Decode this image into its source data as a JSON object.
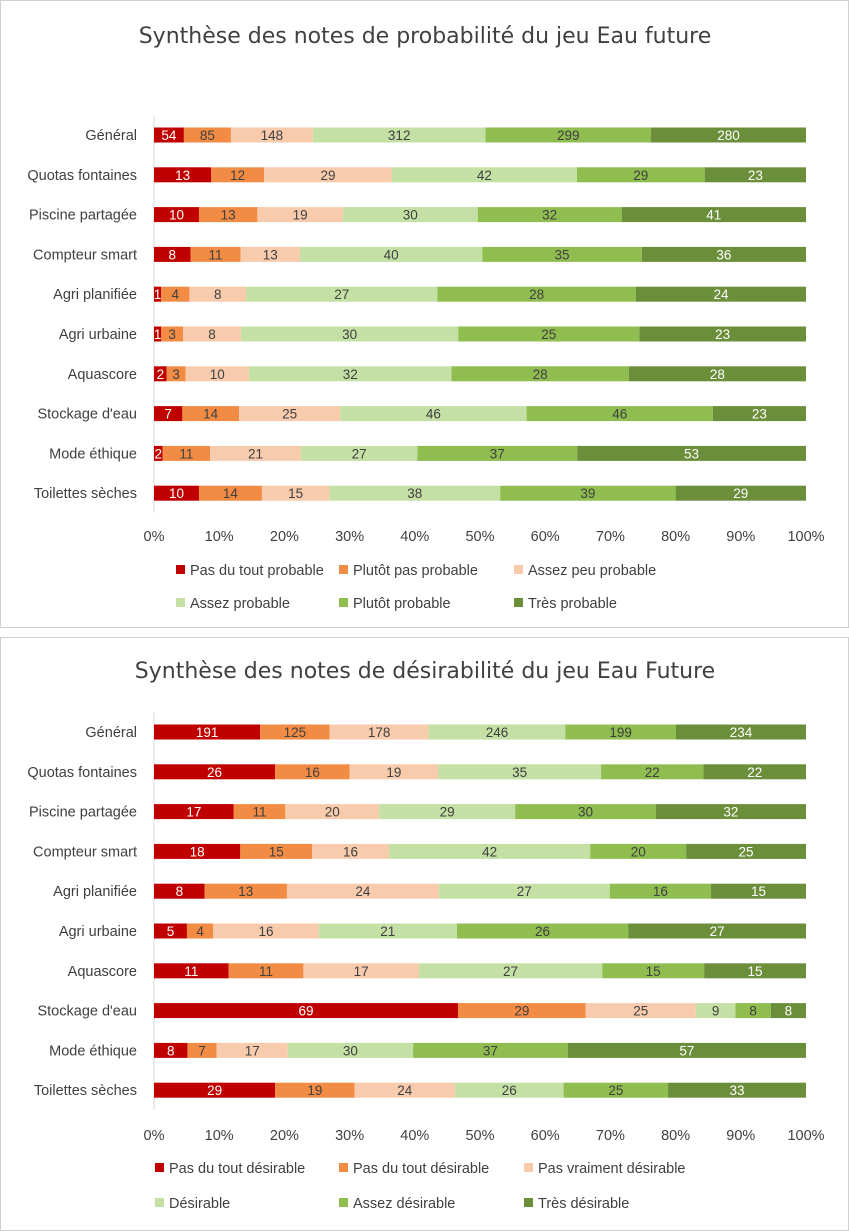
{
  "chart_data": [
    {
      "type": "bar",
      "orientation": "horizontal",
      "stacked": "percent",
      "title": "Synthèse des notes de probabilité du jeu Eau future",
      "categories": [
        "Général",
        "Quotas fontaines",
        "Piscine partagée",
        "Compteur smart",
        "Agri planifiée",
        "Agri urbaine",
        "Aquascore",
        "Stockage d'eau",
        "Mode éthique",
        "Toilettes sèches"
      ],
      "series": [
        {
          "name": "Pas du tout probable",
          "color": "#c00000",
          "values": [
            54,
            13,
            10,
            8,
            1,
            1,
            2,
            7,
            2,
            10
          ]
        },
        {
          "name": "Plutôt pas probable",
          "color": "#f28b44",
          "values": [
            85,
            12,
            13,
            11,
            4,
            3,
            3,
            14,
            11,
            14
          ]
        },
        {
          "name": "Assez peu probable",
          "color": "#f8cbad",
          "values": [
            148,
            29,
            19,
            13,
            8,
            8,
            10,
            25,
            21,
            15
          ]
        },
        {
          "name": "Assez probable",
          "color": "#c5e0a5",
          "values": [
            312,
            42,
            30,
            40,
            27,
            30,
            32,
            46,
            27,
            38
          ]
        },
        {
          "name": "Plutôt probable",
          "color": "#8fbd4f",
          "values": [
            299,
            29,
            32,
            35,
            28,
            25,
            28,
            46,
            37,
            39
          ]
        },
        {
          "name": "Très probable",
          "color": "#6b8e3a",
          "values": [
            280,
            23,
            41,
            36,
            24,
            23,
            28,
            23,
            53,
            29
          ]
        }
      ],
      "x_ticks": [
        "0%",
        "10%",
        "20%",
        "30%",
        "40%",
        "50%",
        "60%",
        "70%",
        "80%",
        "90%",
        "100%"
      ],
      "xlim": [
        0,
        100
      ],
      "grid": false,
      "legend_position": "bottom"
    },
    {
      "type": "bar",
      "orientation": "horizontal",
      "stacked": "percent",
      "title": "Synthèse des notes de désirabilité du jeu Eau Future",
      "categories": [
        "Général",
        "Quotas fontaines",
        "Piscine partagée",
        "Compteur smart",
        "Agri planifiée",
        "Agri urbaine",
        "Aquascore",
        "Stockage d'eau",
        "Mode éthique",
        "Toilettes sèches"
      ],
      "series": [
        {
          "name": "Pas du tout désirable",
          "color": "#c00000",
          "values": [
            191,
            26,
            17,
            18,
            8,
            5,
            11,
            69,
            8,
            29
          ]
        },
        {
          "name": "Pas du tout désirable",
          "color": "#f28b44",
          "values": [
            125,
            16,
            11,
            15,
            13,
            4,
            11,
            29,
            7,
            19
          ]
        },
        {
          "name": "Pas vraiment désirable",
          "color": "#f8cbad",
          "values": [
            178,
            19,
            20,
            16,
            24,
            16,
            17,
            25,
            17,
            24
          ]
        },
        {
          "name": "Désirable",
          "color": "#c5e0a5",
          "values": [
            246,
            35,
            29,
            42,
            27,
            21,
            27,
            9,
            30,
            26
          ]
        },
        {
          "name": "Assez désirable",
          "color": "#8fbd4f",
          "values": [
            199,
            22,
            30,
            20,
            16,
            26,
            15,
            8,
            37,
            25
          ]
        },
        {
          "name": "Très désirable",
          "color": "#6b8e3a",
          "values": [
            234,
            22,
            32,
            25,
            15,
            27,
            15,
            8,
            57,
            33
          ]
        }
      ],
      "x_ticks": [
        "0%",
        "10%",
        "20%",
        "30%",
        "40%",
        "50%",
        "60%",
        "70%",
        "80%",
        "90%",
        "100%"
      ],
      "xlim": [
        0,
        100
      ],
      "grid": false,
      "legend_position": "bottom"
    }
  ]
}
